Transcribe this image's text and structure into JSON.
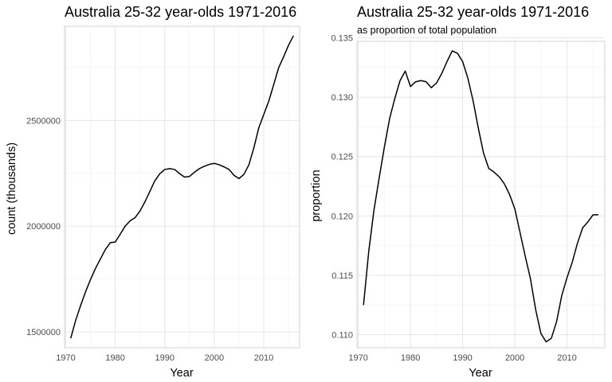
{
  "chart_data": [
    {
      "type": "line",
      "title": "Australia 25-32 year-olds 1971-2016",
      "subtitle": "",
      "xlabel": "Year",
      "ylabel": "count (thousands)",
      "xlim": [
        1969.75,
        2017.25
      ],
      "ylim": [
        1425000,
        2945000
      ],
      "x_ticks": [
        1970,
        1980,
        1990,
        2000,
        2010
      ],
      "y_ticks": [
        1500000,
        2000000,
        2500000
      ],
      "y_tick_labels": [
        "1500000",
        "2000000",
        "2500000"
      ],
      "grid": true,
      "series": [
        {
          "name": "count",
          "x": [
            1971,
            1972,
            1973,
            1974,
            1975,
            1976,
            1977,
            1978,
            1979,
            1980,
            1981,
            1982,
            1983,
            1984,
            1985,
            1986,
            1987,
            1988,
            1989,
            1990,
            1991,
            1992,
            1993,
            1994,
            1995,
            1996,
            1997,
            1998,
            1999,
            2000,
            2001,
            2002,
            2003,
            2004,
            2005,
            2006,
            2007,
            2008,
            2009,
            2010,
            2011,
            2012,
            2013,
            2014,
            2015,
            2016
          ],
          "y": [
            1470000,
            1555000,
            1625000,
            1690000,
            1748000,
            1800000,
            1845000,
            1890000,
            1922000,
            1925000,
            1962000,
            2000000,
            2025000,
            2040000,
            2072000,
            2115000,
            2165000,
            2215000,
            2248000,
            2268000,
            2272000,
            2268000,
            2248000,
            2232000,
            2235000,
            2255000,
            2272000,
            2283000,
            2292000,
            2297000,
            2290000,
            2280000,
            2268000,
            2240000,
            2225000,
            2245000,
            2290000,
            2370000,
            2465000,
            2528000,
            2590000,
            2668000,
            2748000,
            2800000,
            2855000,
            2900000
          ]
        }
      ]
    },
    {
      "type": "line",
      "title": "Australia 25-32 year-olds 1971-2016",
      "subtitle": "as proportion of total population",
      "xlabel": "Year",
      "ylabel": "proportion",
      "xlim": [
        1969.75,
        2017.25
      ],
      "ylim": [
        0.1089,
        0.1347
      ],
      "x_ticks": [
        1970,
        1980,
        1990,
        2000,
        2010
      ],
      "y_ticks": [
        0.11,
        0.115,
        0.12,
        0.125,
        0.13,
        0.135
      ],
      "y_tick_labels": [
        "0.110",
        "0.115",
        "0.120",
        "0.125",
        "0.130",
        "0.135"
      ],
      "grid": true,
      "series": [
        {
          "name": "proportion",
          "x": [
            1971,
            1972,
            1973,
            1974,
            1975,
            1976,
            1977,
            1978,
            1979,
            1980,
            1981,
            1982,
            1983,
            1984,
            1985,
            1986,
            1987,
            1988,
            1989,
            1990,
            1991,
            1992,
            1993,
            1994,
            1995,
            1996,
            1997,
            1998,
            1999,
            2000,
            2001,
            2002,
            2003,
            2004,
            2005,
            2006,
            2007,
            2008,
            2009,
            2010,
            2011,
            2012,
            2013,
            2014,
            2015,
            2016
          ],
          "y": [
            0.1125,
            0.117,
            0.1205,
            0.1232,
            0.1258,
            0.1282,
            0.1299,
            0.1314,
            0.1322,
            0.1309,
            0.1313,
            0.1314,
            0.1313,
            0.1308,
            0.1312,
            0.132,
            0.133,
            0.1339,
            0.1337,
            0.133,
            0.1316,
            0.1297,
            0.1274,
            0.1253,
            0.124,
            0.1237,
            0.1233,
            0.1227,
            0.1218,
            0.1206,
            0.1186,
            0.1166,
            0.1147,
            0.1121,
            0.1101,
            0.1094,
            0.1097,
            0.1111,
            0.1133,
            0.1148,
            0.1161,
            0.1177,
            0.119,
            0.1195,
            0.1201,
            0.1201
          ]
        }
      ]
    }
  ]
}
